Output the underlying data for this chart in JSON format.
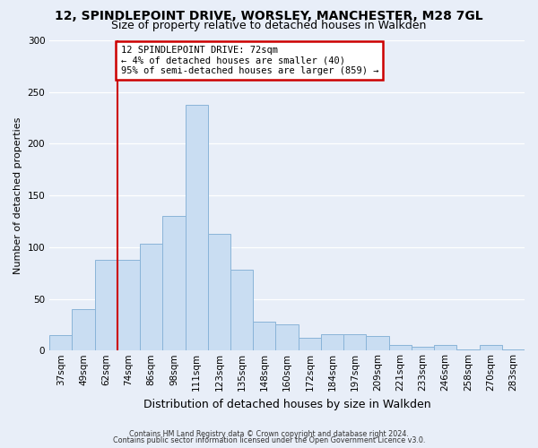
{
  "title1": "12, SPINDLEPOINT DRIVE, WORSLEY, MANCHESTER, M28 7GL",
  "title2": "Size of property relative to detached houses in Walkden",
  "xlabel": "Distribution of detached houses by size in Walkden",
  "ylabel": "Number of detached properties",
  "bin_labels": [
    "37sqm",
    "49sqm",
    "62sqm",
    "74sqm",
    "86sqm",
    "98sqm",
    "111sqm",
    "123sqm",
    "135sqm",
    "148sqm",
    "160sqm",
    "172sqm",
    "184sqm",
    "197sqm",
    "209sqm",
    "221sqm",
    "233sqm",
    "246sqm",
    "258sqm",
    "270sqm",
    "283sqm"
  ],
  "bar_heights": [
    15,
    40,
    88,
    88,
    103,
    130,
    238,
    113,
    78,
    28,
    25,
    12,
    16,
    16,
    14,
    5,
    4,
    5,
    1,
    5,
    1
  ],
  "bar_color": "#c9ddf2",
  "bar_edge_color": "#8ab4d8",
  "vline_x_index": 3,
  "vline_color": "#cc0000",
  "annotation_text": "12 SPINDLEPOINT DRIVE: 72sqm\n← 4% of detached houses are smaller (40)\n95% of semi-detached houses are larger (859) →",
  "annotation_box_edge": "#cc0000",
  "ylim": [
    0,
    300
  ],
  "yticks": [
    0,
    50,
    100,
    150,
    200,
    250,
    300
  ],
  "footer1": "Contains HM Land Registry data © Crown copyright and database right 2024.",
  "footer2": "Contains public sector information licensed under the Open Government Licence v3.0.",
  "bg_color": "#e8eef8",
  "plot_bg_color": "#e8eef8",
  "grid_color": "#ffffff",
  "title1_fontsize": 10,
  "title2_fontsize": 9,
  "xlabel_fontsize": 9,
  "ylabel_fontsize": 8,
  "tick_fontsize": 7.5
}
